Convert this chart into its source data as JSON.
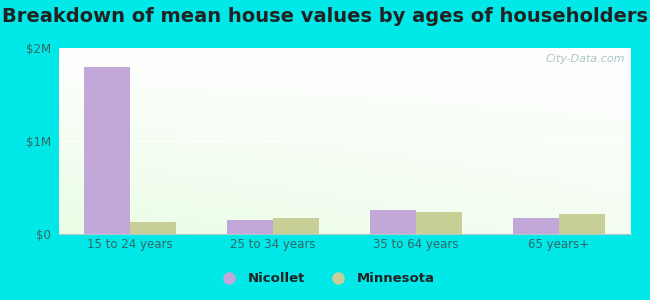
{
  "title": "Breakdown of mean house values by ages of householders",
  "categories": [
    "15 to 24 years",
    "25 to 34 years",
    "35 to 64 years",
    "65 years+"
  ],
  "nicollet_values": [
    1800000,
    155000,
    255000,
    175000
  ],
  "minnesota_values": [
    125000,
    175000,
    240000,
    210000
  ],
  "nicollet_color": "#c2a8d8",
  "minnesota_color": "#c8cf96",
  "ylim": [
    0,
    2000000
  ],
  "yticks": [
    0,
    1000000,
    2000000
  ],
  "ytick_labels": [
    "$0",
    "$1M",
    "$2M"
  ],
  "outer_background": "#00e8e8",
  "watermark": "City-Data.com",
  "legend_nicollet": "Nicollet",
  "legend_minnesota": "Minnesota",
  "title_fontsize": 14,
  "bar_width": 0.32
}
